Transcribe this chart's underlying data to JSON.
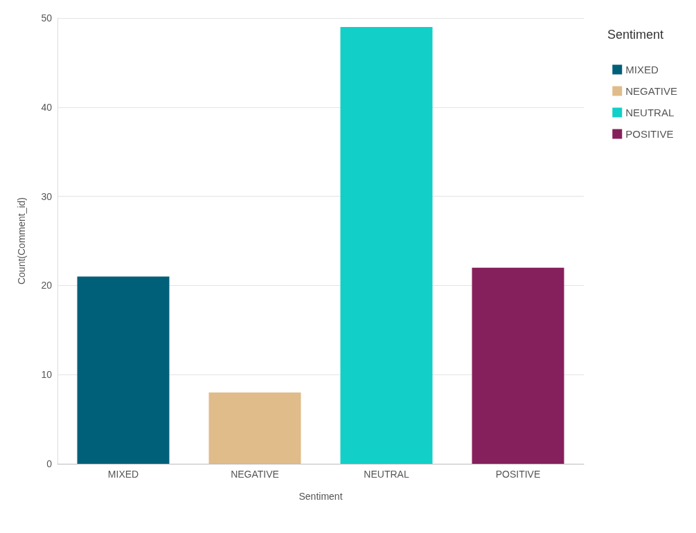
{
  "chart_data": {
    "type": "bar",
    "xlabel": "Sentiment",
    "ylabel": "Count(Comment_id)",
    "legend_title": "Sentiment",
    "categories": [
      "MIXED",
      "NEGATIVE",
      "NEUTRAL",
      "POSITIVE"
    ],
    "series": [
      {
        "name": "MIXED",
        "color": "#00607a",
        "values": [
          21,
          null,
          null,
          null
        ]
      },
      {
        "name": "NEGATIVE",
        "color": "#e0bc8a",
        "values": [
          null,
          8,
          null,
          null
        ]
      },
      {
        "name": "NEUTRAL",
        "color": "#12cfc8",
        "values": [
          null,
          null,
          49,
          null
        ]
      },
      {
        "name": "POSITIVE",
        "color": "#86205c",
        "values": [
          null,
          null,
          null,
          22
        ]
      }
    ],
    "ylim": [
      0,
      50
    ],
    "yticks": [
      0,
      10,
      20,
      30,
      40,
      50
    ],
    "grid": "y",
    "legend": "right"
  }
}
